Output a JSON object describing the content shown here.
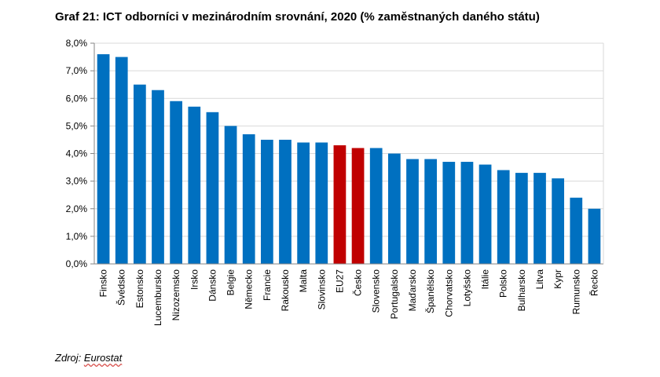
{
  "title": "Graf 21: ICT odborníci v mezinárodním srovnání, 2020 (% zaměstnaných daného státu)",
  "source": {
    "prefix": "Zdroj: ",
    "name": "Eurostat"
  },
  "colors": {
    "bar": "#0070c0",
    "highlight": "#c00000",
    "grid": "#d9d9d9",
    "axis": "#868686"
  },
  "chart_data": {
    "type": "bar",
    "title": "Graf 21: ICT odborníci v mezinárodním srovnání, 2020 (% zaměstnaných daného státu)",
    "xlabel": "",
    "ylabel": "",
    "ylim": [
      0,
      8
    ],
    "yticks": [
      "0,0%",
      "1,0%",
      "2,0%",
      "3,0%",
      "4,0%",
      "5,0%",
      "6,0%",
      "7,0%",
      "8,0%"
    ],
    "grid": true,
    "legend": "none",
    "categories": [
      "Finsko",
      "Švédsko",
      "Estonsko",
      "Lucembursko",
      "Nizozemsko",
      "Irsko",
      "Dánsko",
      "Belgie",
      "Německo",
      "Francie",
      "Rakousko",
      "Malta",
      "Slovinsko",
      "EU27",
      "Česko",
      "Slovensko",
      "Portugalsko",
      "Maďarsko",
      "Španělsko",
      "Chorvatsko",
      "Lotyšsko",
      "Itálie",
      "Polsko",
      "Bulharsko",
      "Litva",
      "Kypr",
      "Rumunsko",
      "Řecko"
    ],
    "values": [
      7.6,
      7.5,
      6.5,
      6.3,
      5.9,
      5.7,
      5.5,
      5.0,
      4.7,
      4.5,
      4.5,
      4.4,
      4.4,
      4.3,
      4.2,
      4.2,
      4.0,
      3.8,
      3.8,
      3.7,
      3.7,
      3.6,
      3.4,
      3.3,
      3.3,
      3.1,
      2.4,
      2.0
    ],
    "highlighted": [
      "EU27",
      "Česko"
    ]
  }
}
